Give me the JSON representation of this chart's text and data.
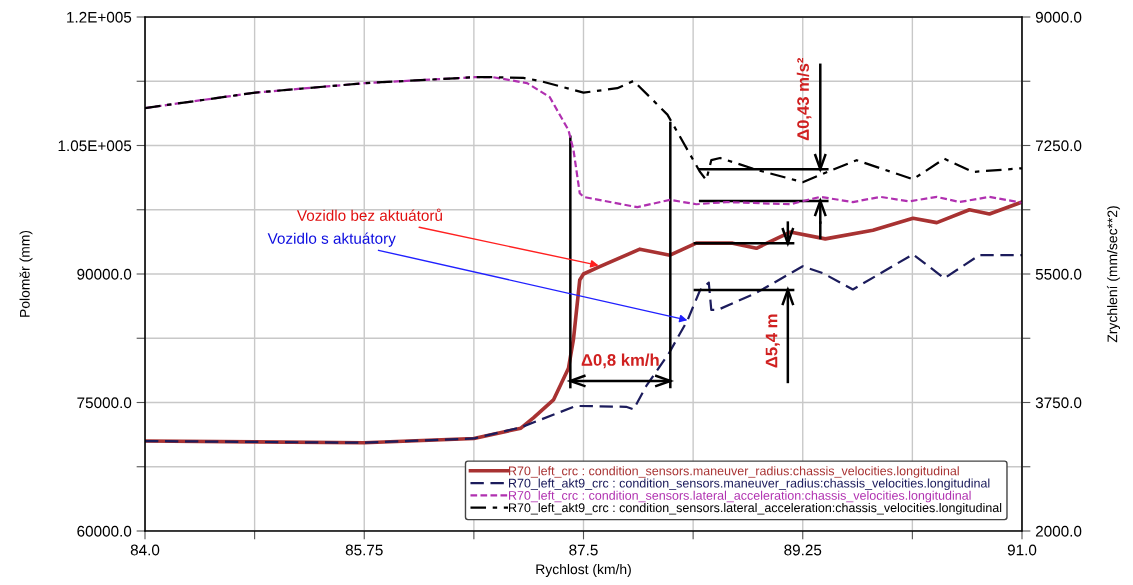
{
  "chart_data": {
    "type": "line",
    "xlabel": "Rychlost (km/h)",
    "ylabel": "Poloměr (mm)",
    "y2label": "Zrychlení (mm/sec**2)",
    "xlim": [
      84,
      91
    ],
    "xticks": [
      {
        "value": 84,
        "label": "84.0"
      },
      {
        "value": 84.875,
        "label": null
      },
      {
        "value": 85.75,
        "label": "85.75"
      },
      {
        "value": 86.625,
        "label": null
      },
      {
        "value": 87.5,
        "label": "87.5"
      },
      {
        "value": 88.375,
        "label": null
      },
      {
        "value": 89.25,
        "label": "89.25"
      },
      {
        "value": 90.125,
        "label": null
      },
      {
        "value": 91,
        "label": "91.0"
      }
    ],
    "ylim": [
      60000,
      120000
    ],
    "yticks": [
      {
        "value": 60000,
        "label": "60000.0"
      },
      {
        "value": 67500,
        "label": null
      },
      {
        "value": 75000,
        "label": "75000.0"
      },
      {
        "value": 82500,
        "label": null
      },
      {
        "value": 90000,
        "label": "90000.0"
      },
      {
        "value": 97500,
        "label": null
      },
      {
        "value": 105000,
        "label": "1.05E+005"
      },
      {
        "value": 112500,
        "label": null
      },
      {
        "value": 120000,
        "label": "1.2E+005"
      }
    ],
    "y2lim": [
      2000,
      9000
    ],
    "y2ticks": [
      {
        "value": 2000,
        "label": "2000.0"
      },
      {
        "value": 2875,
        "label": null
      },
      {
        "value": 3750,
        "label": "3750.0"
      },
      {
        "value": 4625,
        "label": null
      },
      {
        "value": 5500,
        "label": "5500.0"
      },
      {
        "value": 6375,
        "label": null
      },
      {
        "value": 7250,
        "label": "7250.0"
      },
      {
        "value": 8125,
        "label": null
      },
      {
        "value": 9000,
        "label": "9000.0"
      }
    ],
    "grid": true,
    "legend": "bottom right",
    "series": [
      {
        "name": "R70_left_crc : condition_sensors.maneuver_radius:chassis_velocities.longitudinal",
        "color": "#a83232",
        "line_style": "solid",
        "x": [
          84.0,
          84.875,
          85.75,
          86.625,
          87.0,
          87.1,
          87.26,
          87.38,
          87.42,
          87.47,
          87.5,
          87.62,
          87.95,
          88.19,
          88.4,
          88.69,
          88.88,
          89.15,
          89.43,
          89.81,
          90.13,
          90.32,
          90.58,
          90.74,
          91.0
        ],
        "values": [
          70500,
          70400,
          70300,
          70800,
          72000,
          73200,
          75300,
          79000,
          82400,
          89300,
          90000,
          90800,
          92900,
          92200,
          93600,
          93600,
          93000,
          94900,
          94100,
          95100,
          96500,
          96000,
          97500,
          97000,
          98400
        ]
      },
      {
        "name": "R70_left_akt9_crc : condition_sensors.maneuver_radius:chassis_velocities.longitudinal",
        "color": "#1c1c5c",
        "line_style": "dashed",
        "x": [
          84.0,
          84.875,
          85.75,
          86.625,
          87.0,
          87.44,
          87.84,
          87.9,
          88.0,
          88.18,
          88.33,
          88.43,
          88.5,
          88.52,
          88.57,
          88.88,
          89.25,
          89.41,
          89.65,
          90.13,
          90.38,
          90.66,
          91.0
        ],
        "values": [
          70500,
          70400,
          70300,
          70800,
          72100,
          74600,
          74500,
          74200,
          76900,
          80700,
          84600,
          88100,
          89000,
          85800,
          85800,
          87800,
          90900,
          90100,
          88200,
          92300,
          89500,
          92200,
          92200
        ]
      },
      {
        "name": "R70_left_crc : condition_sensors.lateral_acceleration:chassis_velocities.longitudinal",
        "color": "#b030b0",
        "line_style": "dotted",
        "axis": "y2",
        "x": [
          84.0,
          84.88,
          85.76,
          86.63,
          86.78,
          87.05,
          87.23,
          87.38,
          87.42,
          87.47,
          87.5,
          87.93,
          88.19,
          88.4,
          88.64,
          89.15,
          89.39,
          89.65,
          89.87,
          90.1,
          90.32,
          90.5,
          90.74,
          91.0
        ],
        "values": [
          7760,
          7970,
          8100,
          8180,
          8180,
          8100,
          7910,
          7460,
          7190,
          6600,
          6550,
          6410,
          6510,
          6450,
          6480,
          6450,
          6550,
          6480,
          6550,
          6490,
          6550,
          6480,
          6550,
          6470
        ]
      },
      {
        "name": "R70_left_akt9_crc : condition_sensors.lateral_acceleration:chassis_velocities.longitudinal",
        "color": "#000000",
        "line_style": "dashdot",
        "axis": "y2",
        "x": [
          84.0,
          84.88,
          85.76,
          86.63,
          86.78,
          87.02,
          87.15,
          87.5,
          87.77,
          87.9,
          88.17,
          88.43,
          88.48,
          88.52,
          88.59,
          88.88,
          89.25,
          89.39,
          89.68,
          90.13,
          90.38,
          90.61,
          91.0
        ],
        "values": [
          7760,
          7970,
          8100,
          8180,
          8180,
          8170,
          8130,
          7970,
          8030,
          8130,
          7670,
          6890,
          6780,
          7050,
          7080,
          6920,
          6750,
          6850,
          7050,
          6790,
          7070,
          6890,
          6940
        ]
      }
    ],
    "annotations": [
      {
        "text": "Vozidlo bez aktuátorů",
        "x": 87.62,
        "y": 91000
      },
      {
        "text": "Vozidlo s aktuátory",
        "x": 88.33,
        "y": 84600
      },
      "Δ0,8 km/h",
      "Δ5,4 m",
      "Δ0,43 m/s²"
    ]
  }
}
